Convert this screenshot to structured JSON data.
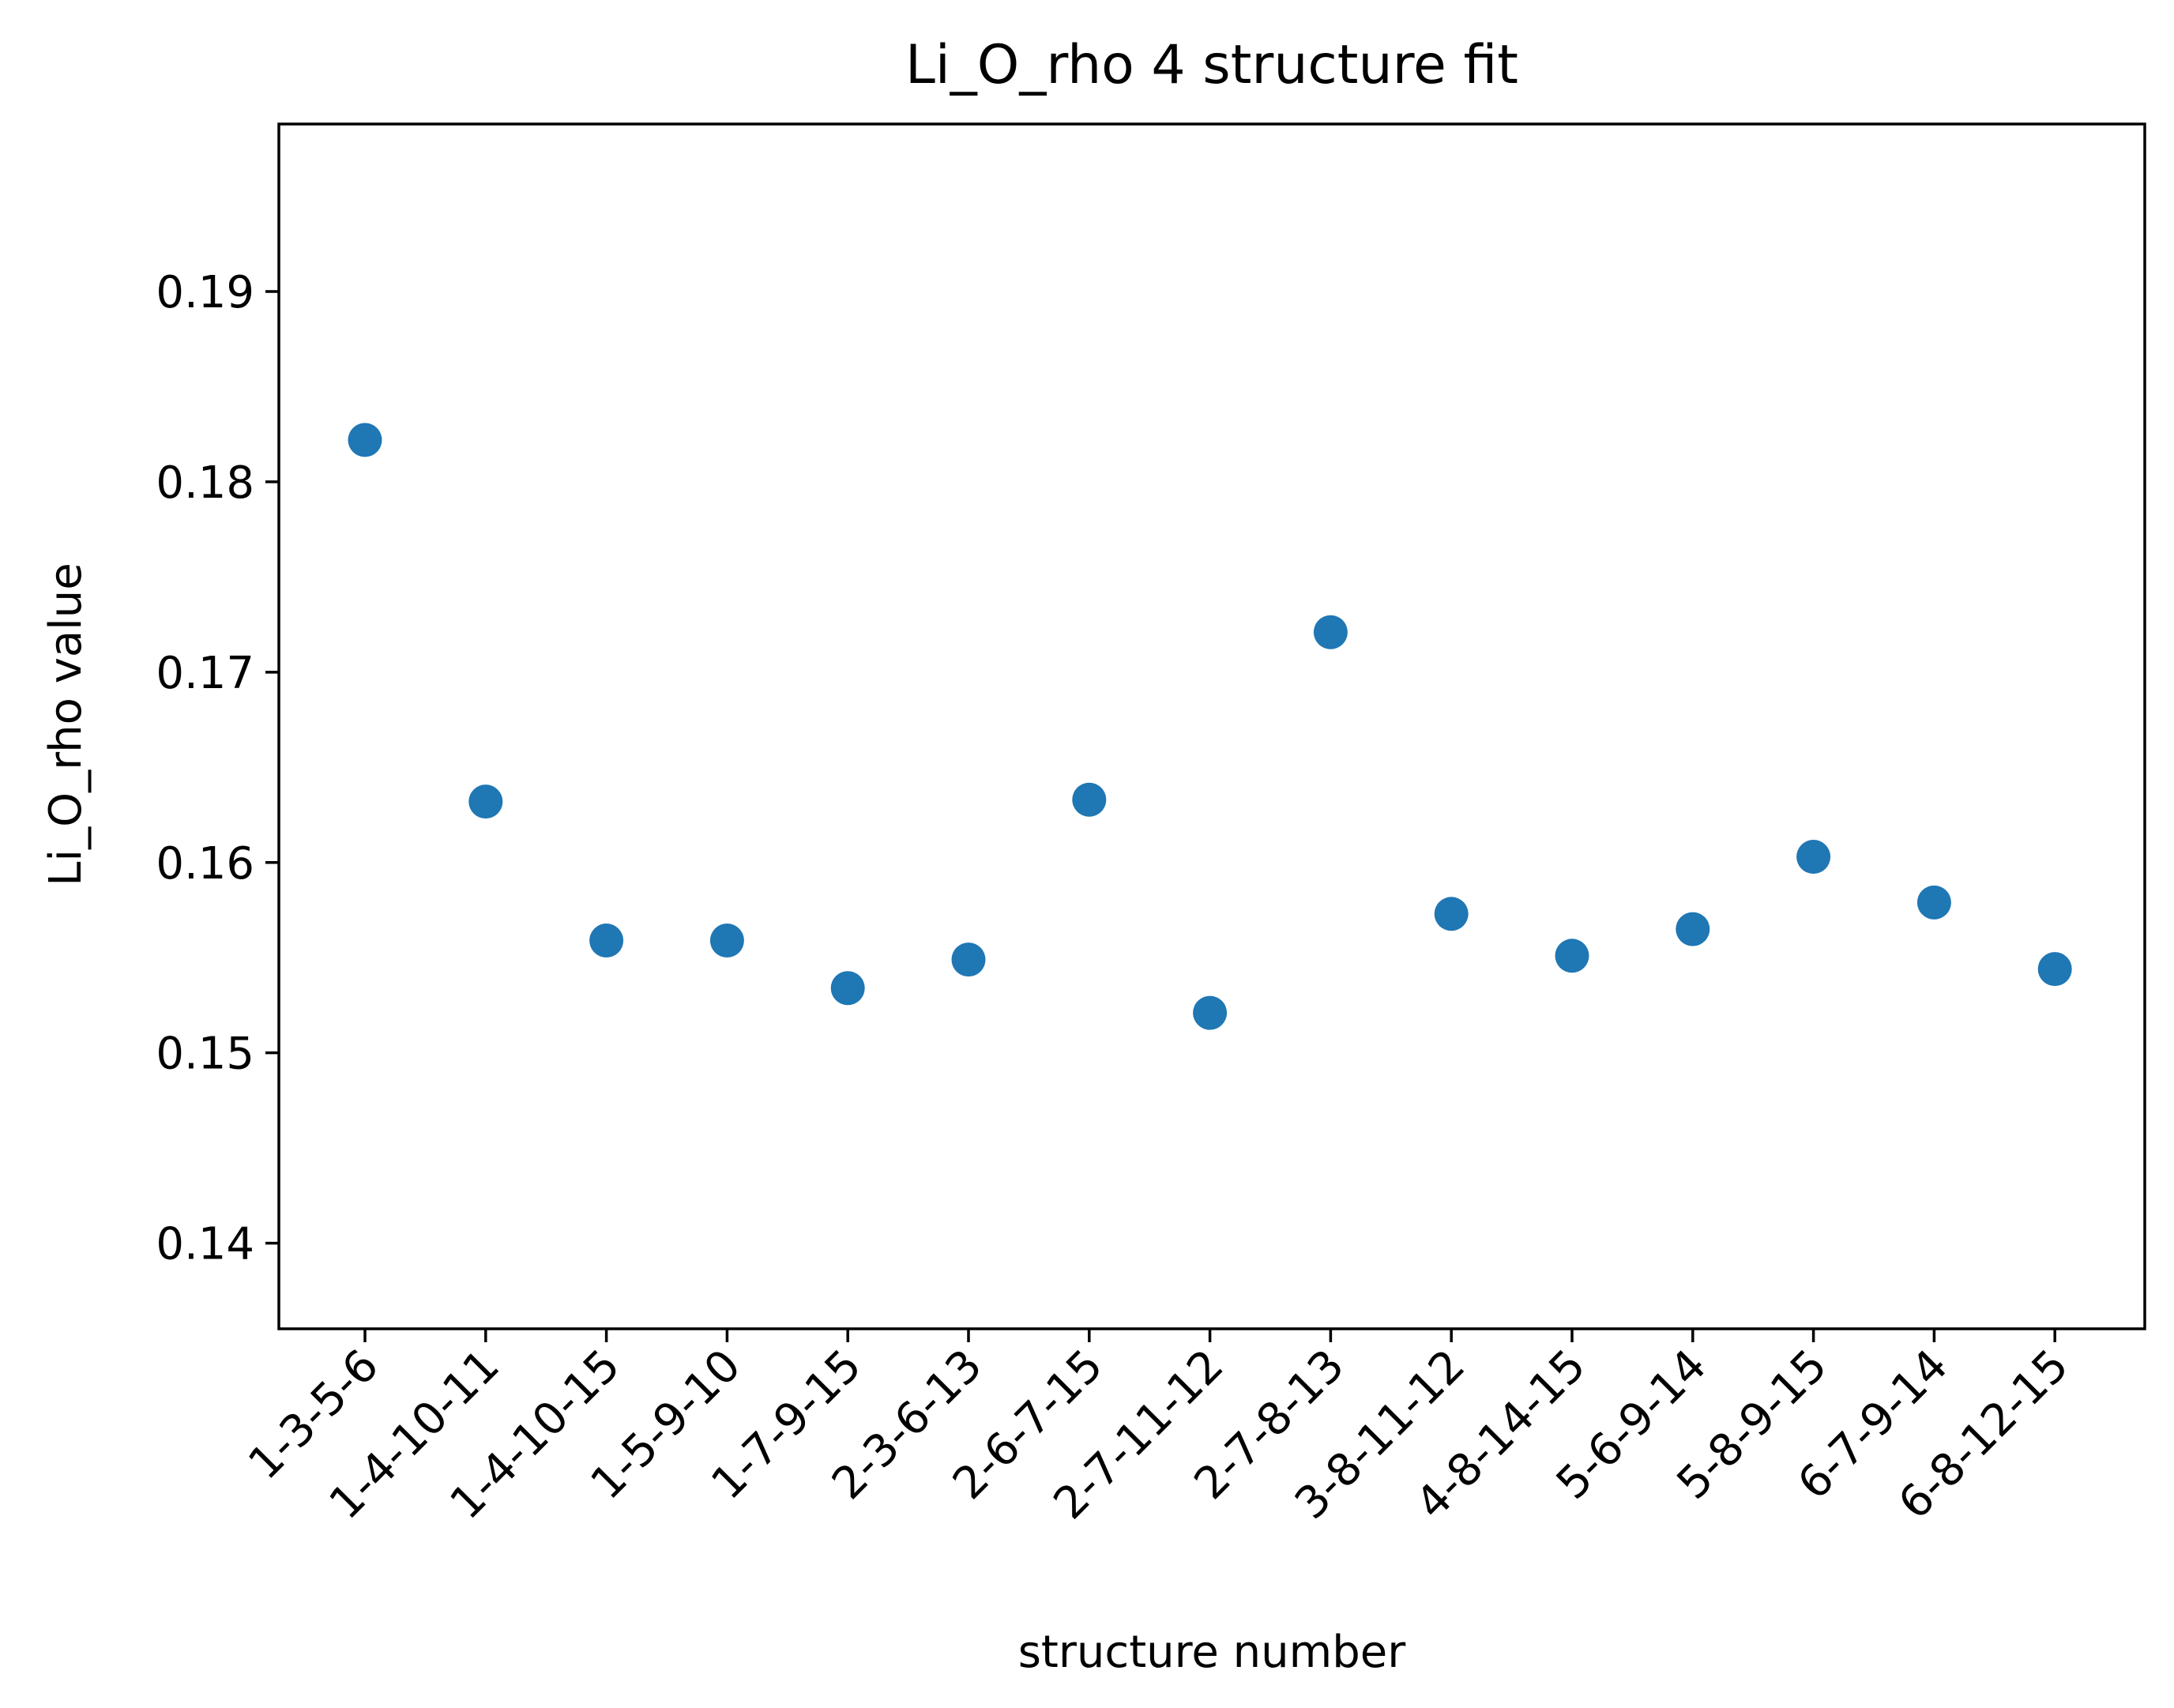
{
  "chart_data": {
    "type": "scatter",
    "title": "Li_O_rho 4 structure fit",
    "xlabel": "structure number",
    "ylabel": "Li_O_rho value",
    "categories": [
      "1-3-5-6",
      "1-4-10-11",
      "1-4-10-15",
      "1-5-9-10",
      "1-7-9-15",
      "2-3-6-13",
      "2-6-7-15",
      "2-7-11-12",
      "2-7-8-13",
      "3-8-11-12",
      "4-8-14-15",
      "5-6-9-14",
      "5-8-9-15",
      "6-7-9-14",
      "6-8-12-15"
    ],
    "values": [
      0.1822,
      0.1632,
      0.1559,
      0.1559,
      0.1534,
      0.1549,
      0.1633,
      0.1521,
      0.1721,
      0.1573,
      0.1551,
      0.1565,
      0.1603,
      0.1579,
      0.1544
    ],
    "ylim": [
      0.1355,
      0.1988
    ],
    "yticks": [
      "0.14",
      "0.15",
      "0.16",
      "0.17",
      "0.18",
      "0.19"
    ],
    "grid": false,
    "marker_color": "#1f77b4"
  }
}
